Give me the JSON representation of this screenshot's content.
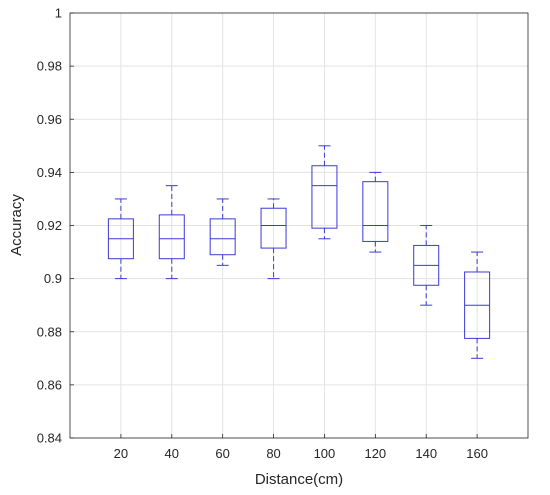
{
  "chart_data": {
    "type": "box",
    "title": "",
    "xlabel": "Distance(cm)",
    "ylabel": "Accuracy",
    "categories": [
      "20",
      "40",
      "60",
      "80",
      "100",
      "120",
      "140",
      "160"
    ],
    "ylim": [
      0.84,
      1.0
    ],
    "yticks": [
      "0.84",
      "0.86",
      "0.88",
      "0.9",
      "0.92",
      "0.94",
      "0.96",
      "0.98",
      "1"
    ],
    "grid": true,
    "box_color": "#3a3ad6",
    "boxes": [
      {
        "category": "20",
        "min": 0.9,
        "q1": 0.9075,
        "median": 0.915,
        "q3": 0.9225,
        "max": 0.93
      },
      {
        "category": "40",
        "min": 0.9,
        "q1": 0.9075,
        "median": 0.915,
        "q3": 0.924,
        "max": 0.935
      },
      {
        "category": "60",
        "min": 0.905,
        "q1": 0.909,
        "median": 0.915,
        "q3": 0.9225,
        "max": 0.93
      },
      {
        "category": "80",
        "min": 0.9,
        "q1": 0.9115,
        "median": 0.92,
        "q3": 0.9265,
        "max": 0.93
      },
      {
        "category": "100",
        "min": 0.915,
        "q1": 0.919,
        "median": 0.935,
        "q3": 0.9425,
        "max": 0.95
      },
      {
        "category": "120",
        "min": 0.91,
        "q1": 0.914,
        "median": 0.92,
        "q3": 0.9365,
        "max": 0.94
      },
      {
        "category": "140",
        "min": 0.89,
        "q1": 0.8975,
        "median": 0.905,
        "q3": 0.9125,
        "max": 0.92
      },
      {
        "category": "160",
        "min": 0.87,
        "q1": 0.8775,
        "median": 0.89,
        "q3": 0.9025,
        "max": 0.91
      }
    ]
  }
}
